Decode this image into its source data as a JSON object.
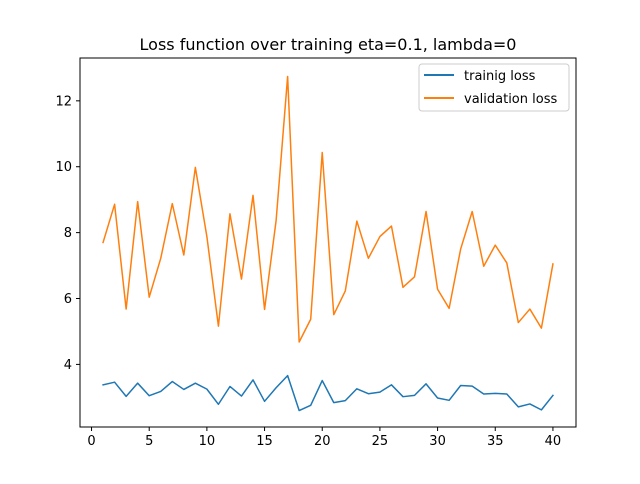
{
  "chart_data": {
    "type": "line",
    "title": "Loss function over training eta=0.1, lambda=0",
    "xlabel": "",
    "ylabel": "",
    "x": [
      1,
      2,
      3,
      4,
      5,
      6,
      7,
      8,
      9,
      10,
      11,
      12,
      13,
      14,
      15,
      16,
      17,
      18,
      19,
      20,
      21,
      22,
      23,
      24,
      25,
      26,
      27,
      28,
      29,
      30,
      31,
      32,
      33,
      34,
      35,
      36,
      37,
      38,
      39,
      40
    ],
    "xlim": [
      -1,
      42
    ],
    "ylim": [
      2.1,
      13.3
    ],
    "xticks": [
      0,
      5,
      10,
      15,
      20,
      25,
      30,
      35,
      40
    ],
    "yticks": [
      4,
      6,
      8,
      10,
      12
    ],
    "xtick_labels": [
      "0",
      "5",
      "10",
      "15",
      "20",
      "25",
      "30",
      "35",
      "40"
    ],
    "ytick_labels": [
      "4",
      "6",
      "8",
      "10",
      "12"
    ],
    "legend_position": "top-right",
    "series": [
      {
        "name": "trainig loss",
        "color": "#1f77b4",
        "values": [
          3.38,
          3.46,
          3.03,
          3.43,
          3.05,
          3.18,
          3.48,
          3.24,
          3.43,
          3.25,
          2.79,
          3.33,
          3.04,
          3.53,
          2.88,
          3.29,
          3.66,
          2.6,
          2.76,
          3.51,
          2.84,
          2.9,
          3.26,
          3.11,
          3.16,
          3.38,
          3.02,
          3.06,
          3.41,
          2.98,
          2.91,
          3.36,
          3.34,
          3.1,
          3.12,
          3.1,
          2.71,
          2.8,
          2.62,
          3.06
        ]
      },
      {
        "name": "validation loss",
        "color": "#ff7f0e",
        "values": [
          7.7,
          8.86,
          5.68,
          8.94,
          6.04,
          7.22,
          8.88,
          7.32,
          9.98,
          7.88,
          5.16,
          8.57,
          6.59,
          9.13,
          5.67,
          8.36,
          12.74,
          4.68,
          5.37,
          10.43,
          5.51,
          6.23,
          8.35,
          7.22,
          7.88,
          8.2,
          6.34,
          6.66,
          8.64,
          6.28,
          5.7,
          7.5,
          8.64,
          6.98,
          7.62,
          7.08,
          5.27,
          5.68,
          5.1,
          7.05
        ]
      }
    ]
  }
}
